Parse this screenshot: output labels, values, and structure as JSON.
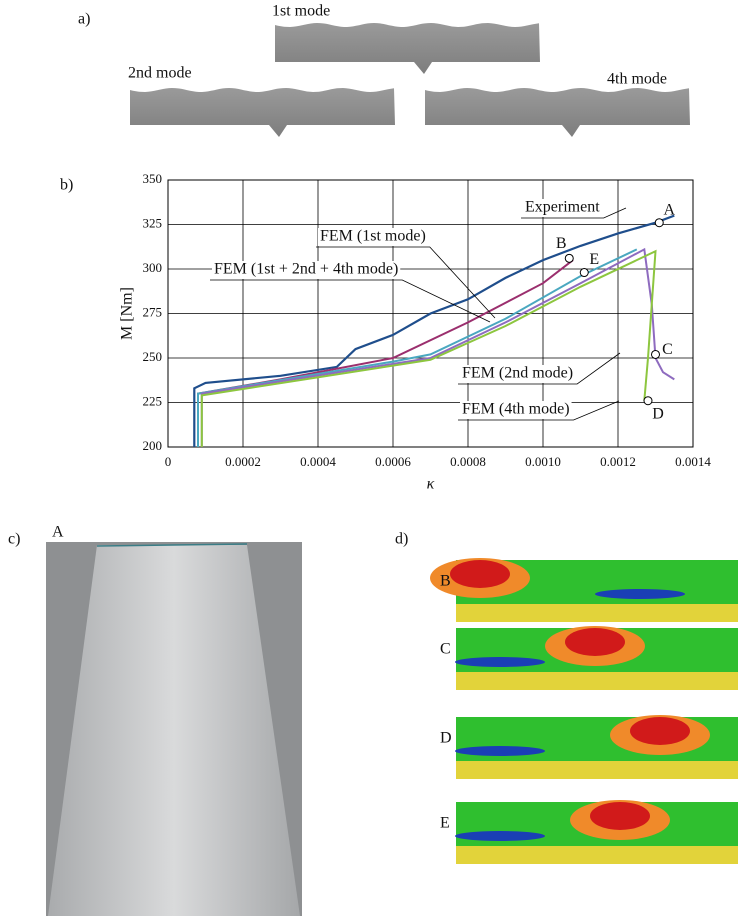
{
  "panels": {
    "a": "a)",
    "b": "b)",
    "c": "c)",
    "d": "d)"
  },
  "modes": [
    "1st mode",
    "2nd mode",
    "4th mode"
  ],
  "photo_label": "A",
  "contour_labels": [
    "B",
    "C",
    "D",
    "E"
  ],
  "chart_data": {
    "type": "line",
    "xlabel": "κ",
    "ylabel": "M [Nm]",
    "xlim": [
      0,
      0.0014
    ],
    "ylim": [
      200,
      350
    ],
    "xticks": [
      0,
      0.0002,
      0.0004,
      0.0006,
      0.0008,
      {
        "value": 0.001,
        "label": "0.0010"
      },
      0.0012,
      0.0014
    ],
    "yticks": [
      200,
      225,
      250,
      275,
      300,
      325,
      350
    ],
    "grid": true,
    "series": [
      {
        "name": "Experiment",
        "color": "#1f4e8c",
        "x": [
          7e-05,
          7e-05,
          0.0001,
          0.0003,
          0.00045,
          0.0005,
          0.0006,
          0.0007,
          0.0008,
          0.0009,
          0.001,
          0.0011,
          0.0012,
          0.0013,
          0.00135
        ],
        "values": [
          200,
          233,
          236,
          240,
          245,
          255,
          263,
          275,
          283,
          295,
          305,
          313,
          320,
          326,
          330
        ]
      },
      {
        "name": "FEM (1st mode)",
        "color": "#9b2f6e",
        "x": [
          8e-05,
          8e-05,
          0.0003,
          0.0006,
          0.0008,
          0.001,
          0.00108
        ],
        "values": [
          200,
          230,
          238,
          250,
          270,
          292,
          305
        ]
      },
      {
        "name": "FEM (1st + 2nd + 4th mode)",
        "color": "#4aa8c0",
        "x": [
          8e-05,
          8e-05,
          0.0006,
          0.0007,
          0.0009,
          0.0011,
          0.00125
        ],
        "values": [
          200,
          230,
          248,
          252,
          272,
          296,
          311
        ]
      },
      {
        "name": "FEM (2nd mode)",
        "color": "#8e6bbf",
        "x": [
          9e-05,
          9e-05,
          0.0007,
          0.0009,
          0.0011,
          0.00127,
          0.00129,
          0.0013,
          0.00132,
          0.00135
        ],
        "values": [
          200,
          230,
          250,
          270,
          292,
          311,
          280,
          250,
          242,
          238
        ]
      },
      {
        "name": "FEM (4th mode)",
        "color": "#8dc63f",
        "x": [
          9e-05,
          9e-05,
          0.0007,
          0.0009,
          0.0011,
          0.0013,
          0.00128,
          0.00127
        ],
        "values": [
          200,
          229,
          249,
          268,
          290,
          310,
          250,
          226
        ]
      }
    ],
    "annotations": [
      {
        "text": "A",
        "x": 0.00131,
        "y": 326
      },
      {
        "text": "B",
        "x": 0.00107,
        "y": 306
      },
      {
        "text": "E",
        "x": 0.00111,
        "y": 298
      },
      {
        "text": "C",
        "x": 0.0013,
        "y": 252
      },
      {
        "text": "D",
        "x": 0.00128,
        "y": 226
      }
    ]
  }
}
